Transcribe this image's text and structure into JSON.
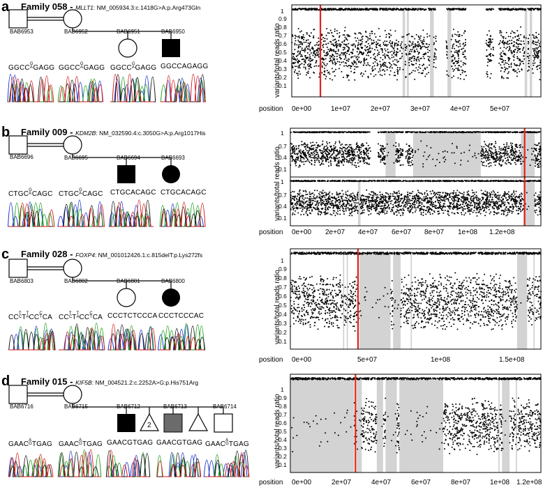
{
  "axis": {
    "ylabel": "variants/total reads ratio",
    "xlabel": "position"
  },
  "panels": [
    {
      "letter": "a",
      "family": "Family 058 -",
      "gene": "MLLT1",
      "mutation": ": NM_005934.3:c.1418G>A:p.Arg473Gln",
      "ids": [
        "BAB6953",
        "BAB6952",
        "BAB6951",
        "BAB6950"
      ],
      "seqs": [
        "GGCC|GA|GAGG",
        "GGCC|GA|GAGG",
        "GGCC|GA|GAGG",
        "GGCCAGAGG"
      ],
      "yticks": [
        "1",
        "0.9",
        "0.8",
        "0.7",
        "0.6",
        "0.5",
        "0.4",
        "0.3",
        "0.2",
        "0.1"
      ],
      "xticks": [
        "0e+00",
        "1e+07",
        "2e+07",
        "3e+07",
        "4e+07",
        "5e+07"
      ]
    },
    {
      "letter": "b",
      "family": "Family 009 -",
      "gene": "KDM2B",
      "mutation": ": NM_032590.4:c.3050G>A:p.Arg1017His",
      "ids": [
        "BAB6696",
        "BAB6695",
        "BAB6694",
        "BAB6693"
      ],
      "seqs": [
        "CTGC|GA|CAGC",
        "CTGC|GA|CAGC",
        "CTGCACAGC",
        "CTGCACAGC"
      ],
      "yticks_top": [
        "1",
        "0.7",
        "0.4",
        "0.1"
      ],
      "yticks_bottom": [
        "1",
        "0.7",
        "0.4",
        "0.1"
      ],
      "xticks": [
        "0e+00",
        "2e+07",
        "4e+07",
        "6e+07",
        "8e+07",
        "1e+08",
        "1.2e+08"
      ]
    },
    {
      "letter": "c",
      "family": "Family 028 -",
      "gene": "FOXP4",
      "mutation": ": NM_001012426.1:c.815delT:p.Lys272fs",
      "ids": [
        "BAB6803",
        "BAB6802",
        "BAB6801",
        "BAB6800"
      ],
      "seqs": [
        "CC|TC|T|TA|CC|CT|CA",
        "CC|TC|T|TA|CC|CT|CA",
        "CCCTCTCCCA",
        "CCCTCCCAC"
      ],
      "yticks": [
        "1",
        "0.9",
        "0.8",
        "0.7",
        "0.6",
        "0.5",
        "0.4",
        "0.3",
        "0.2",
        "0.1"
      ],
      "xticks": [
        "0e+00",
        "5e+07",
        "1e+08",
        "1.5e+08"
      ]
    },
    {
      "letter": "d",
      "family": "Family 015 -",
      "gene": "KIF5B",
      "mutation": ": NM_004521.2:c.2252A>G:p.His751Arg",
      "ids": [
        "BAB6716",
        "BAB6715",
        "BAB6712",
        "BAB6713",
        "BAB6714"
      ],
      "sibling_count": "2",
      "seqs": [
        "GAAC|AG|TGAG",
        "GAAC|AG|TGAG",
        "GAACGTGAG",
        "GAACGTGAG",
        "GAAC|AG|TGAG"
      ],
      "yticks": [
        "1",
        "0.9",
        "0.8",
        "0.7",
        "0.6",
        "0.5",
        "0.4",
        "0.3",
        "0.2",
        "0.1"
      ],
      "xticks": [
        "0e+00",
        "2e+07",
        "4e+07",
        "6e+07",
        "8e+07",
        "1e+08",
        "1.2e+08"
      ]
    }
  ]
}
